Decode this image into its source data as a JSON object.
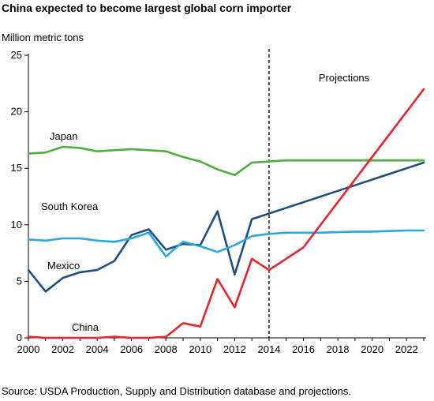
{
  "chart_data": {
    "type": "line",
    "title": "China expected to become largest global corn importer",
    "ylabel": "Million metric tons",
    "xlabel": "",
    "source": "Source: USDA Production, Supply and Distribution database and projections.",
    "xlim": [
      2000,
      2023
    ],
    "ylim": [
      0,
      25
    ],
    "x_ticks": [
      2000,
      2002,
      2004,
      2006,
      2008,
      2010,
      2012,
      2014,
      2016,
      2018,
      2020,
      2022
    ],
    "y_ticks": [
      0,
      5,
      10,
      15,
      20,
      25
    ],
    "grid": false,
    "projection_start": 2014,
    "projection_label": "Projections",
    "series": [
      {
        "name": "Japan",
        "color": "#4caf3c",
        "x": [
          2000,
          2001,
          2002,
          2003,
          2004,
          2005,
          2006,
          2007,
          2008,
          2009,
          2010,
          2011,
          2012,
          2013,
          2014,
          2015,
          2016,
          2017,
          2018,
          2019,
          2020,
          2021,
          2022,
          2023
        ],
        "y": [
          16.3,
          16.4,
          16.9,
          16.8,
          16.5,
          16.6,
          16.7,
          16.6,
          16.5,
          16.0,
          15.6,
          14.9,
          14.4,
          15.5,
          15.6,
          15.7,
          15.7,
          15.7,
          15.7,
          15.7,
          15.7,
          15.7,
          15.7,
          15.7
        ]
      },
      {
        "name": "Mexico",
        "color": "#1f4e82",
        "x": [
          2000,
          2001,
          2002,
          2003,
          2004,
          2005,
          2006,
          2007,
          2008,
          2009,
          2010,
          2011,
          2012,
          2013,
          2014,
          2015,
          2016,
          2017,
          2018,
          2019,
          2020,
          2021,
          2022,
          2023
        ],
        "y": [
          6.0,
          4.1,
          5.3,
          5.8,
          6.0,
          6.8,
          9.1,
          9.6,
          7.8,
          8.3,
          8.2,
          11.2,
          5.6,
          10.5,
          11.0,
          11.5,
          12.0,
          12.5,
          13.0,
          13.5,
          14.0,
          14.5,
          15.0,
          15.5
        ]
      },
      {
        "name": "South Korea",
        "color": "#2aa7df",
        "x": [
          2000,
          2001,
          2002,
          2003,
          2004,
          2005,
          2006,
          2007,
          2008,
          2009,
          2010,
          2011,
          2012,
          2013,
          2014,
          2015,
          2016,
          2017,
          2018,
          2019,
          2020,
          2021,
          2022,
          2023
        ],
        "y": [
          8.7,
          8.6,
          8.8,
          8.8,
          8.6,
          8.5,
          8.8,
          9.3,
          7.2,
          8.5,
          8.1,
          7.6,
          8.2,
          9.0,
          9.2,
          9.3,
          9.3,
          9.3,
          9.35,
          9.4,
          9.4,
          9.45,
          9.5,
          9.5
        ]
      },
      {
        "name": "China",
        "color": "#e8232a",
        "x": [
          2000,
          2001,
          2002,
          2003,
          2004,
          2005,
          2006,
          2007,
          2008,
          2009,
          2010,
          2011,
          2012,
          2013,
          2014,
          2016,
          2023
        ],
        "y": [
          0.1,
          0.0,
          0.0,
          0.0,
          0.0,
          0.1,
          0.0,
          0.0,
          0.1,
          1.3,
          1.0,
          5.2,
          2.7,
          7.0,
          6.0,
          8.0,
          22.0
        ]
      }
    ]
  }
}
